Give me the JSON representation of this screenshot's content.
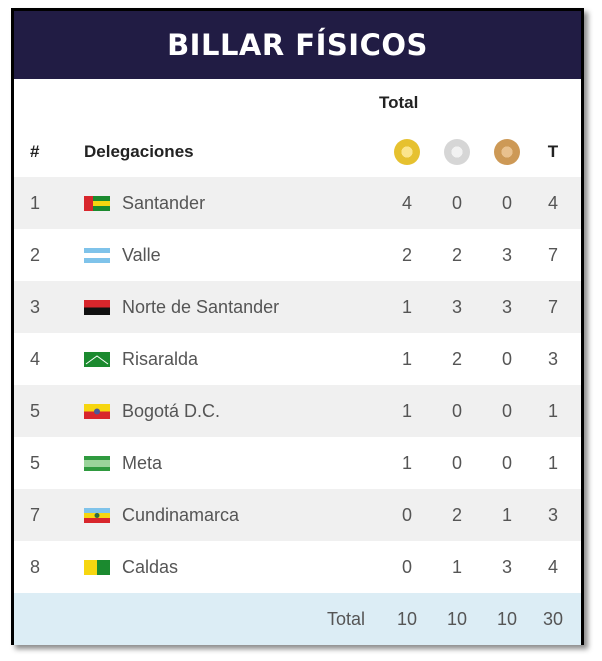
{
  "title": "BILLAR FÍSICOS",
  "header": {
    "total_label": "Total",
    "rank_label": "#",
    "delegations_label": "Delegaciones",
    "total_col_label": "T"
  },
  "rows": [
    {
      "rank": "1",
      "name": "Santander",
      "flag": "santander-flag",
      "gold": "4",
      "silver": "0",
      "bronze": "0",
      "total": "4"
    },
    {
      "rank": "2",
      "name": "Valle",
      "flag": "valle-flag",
      "gold": "2",
      "silver": "2",
      "bronze": "3",
      "total": "7"
    },
    {
      "rank": "3",
      "name": "Norte de Santander",
      "flag": "norte-de-santander-flag",
      "gold": "1",
      "silver": "3",
      "bronze": "3",
      "total": "7"
    },
    {
      "rank": "4",
      "name": "Risaralda",
      "flag": "risaralda-flag",
      "gold": "1",
      "silver": "2",
      "bronze": "0",
      "total": "3"
    },
    {
      "rank": "5",
      "name": "Bogotá D.C.",
      "flag": "bogota-flag",
      "gold": "1",
      "silver": "0",
      "bronze": "0",
      "total": "1"
    },
    {
      "rank": "5",
      "name": "Meta",
      "flag": "meta-flag",
      "gold": "1",
      "silver": "0",
      "bronze": "0",
      "total": "1"
    },
    {
      "rank": "7",
      "name": "Cundinamarca",
      "flag": "cundinamarca-flag",
      "gold": "0",
      "silver": "2",
      "bronze": "1",
      "total": "3"
    },
    {
      "rank": "8",
      "name": "Caldas",
      "flag": "caldas-flag",
      "gold": "0",
      "silver": "1",
      "bronze": "3",
      "total": "4"
    }
  ],
  "footer": {
    "label": "Total",
    "gold": "10",
    "silver": "10",
    "bronze": "10",
    "total": "30"
  },
  "colors": {
    "header_bg": "#211c44",
    "alt_row": "#f0f0f0",
    "footer_bg": "#dcedf5",
    "gold": "#e6c12f",
    "silver": "#d6d6d6",
    "bronze": "#cd9956"
  }
}
